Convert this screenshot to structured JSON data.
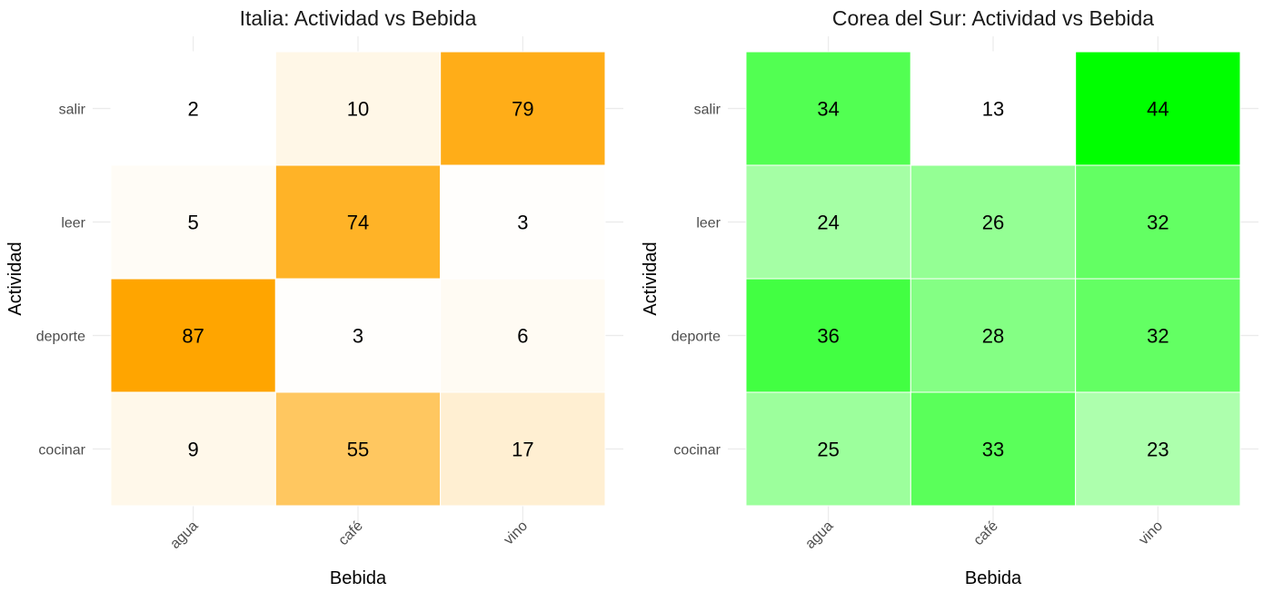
{
  "chart_data": [
    {
      "type": "heatmap",
      "title": "Italia: Actividad vs Bebida",
      "xlabel": "Bebida",
      "ylabel": "Actividad",
      "x_categories": [
        "agua",
        "café",
        "vino"
      ],
      "y_categories": [
        "salir",
        "leer",
        "deporte",
        "cocinar"
      ],
      "values": [
        [
          2,
          10,
          79
        ],
        [
          5,
          74,
          3
        ],
        [
          87,
          3,
          6
        ],
        [
          9,
          55,
          17
        ]
      ],
      "color_low": "#ffffff",
      "color_high": "#ffa500",
      "grid": true
    },
    {
      "type": "heatmap",
      "title": "Corea del Sur: Actividad vs Bebida",
      "xlabel": "Bebida",
      "ylabel": "Actividad",
      "x_categories": [
        "agua",
        "café",
        "vino"
      ],
      "y_categories": [
        "salir",
        "leer",
        "deporte",
        "cocinar"
      ],
      "values": [
        [
          34,
          13,
          44
        ],
        [
          24,
          26,
          32
        ],
        [
          36,
          28,
          32
        ],
        [
          25,
          33,
          23
        ]
      ],
      "color_low": "#ffffff",
      "color_high": "#00ff00",
      "grid": true
    }
  ]
}
